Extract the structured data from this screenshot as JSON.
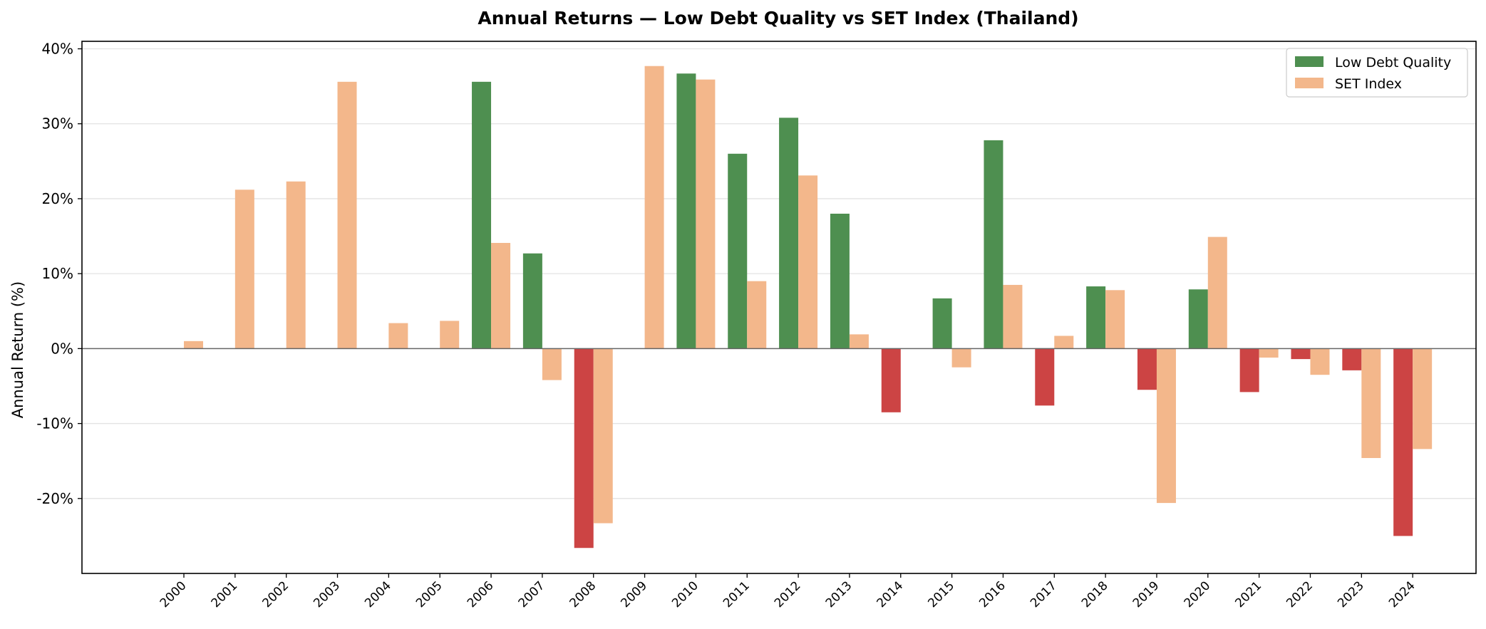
{
  "chart_data": {
    "type": "bar",
    "title": "Annual Returns — Low Debt Quality vs SET Index (Thailand)",
    "xlabel": "",
    "ylabel": "Annual Return (%)",
    "ylim": [
      -30,
      41
    ],
    "yticks": [
      -20,
      -10,
      0,
      10,
      20,
      30,
      40
    ],
    "ytick_labels": [
      "-20%",
      "-10%",
      "0%",
      "10%",
      "20%",
      "30%",
      "40%"
    ],
    "grid": "horizontal",
    "legend_position": "top-right",
    "categories": [
      "2000",
      "2001",
      "2002",
      "2003",
      "2004",
      "2005",
      "2006",
      "2007",
      "2008",
      "2009",
      "2010",
      "2011",
      "2012",
      "2013",
      "2014",
      "2015",
      "2016",
      "2017",
      "2018",
      "2019",
      "2020",
      "2021",
      "2022",
      "2023",
      "2024"
    ],
    "series": [
      {
        "name": "Low Debt Quality",
        "color": "#4e8f50",
        "negative_color": "#cc4444",
        "values": [
          null,
          null,
          null,
          null,
          null,
          null,
          35.6,
          12.7,
          -26.6,
          null,
          36.7,
          26.0,
          30.8,
          18.0,
          -8.5,
          6.7,
          27.8,
          -7.6,
          8.3,
          -5.5,
          7.9,
          -5.8,
          -1.4,
          -2.9,
          -25.0
        ]
      },
      {
        "name": "SET Index",
        "color": "#f3b78b",
        "values": [
          1.0,
          21.2,
          22.3,
          35.6,
          3.4,
          3.7,
          14.1,
          -4.2,
          -23.3,
          37.7,
          35.9,
          9.0,
          23.1,
          1.9,
          null,
          -2.5,
          8.5,
          1.7,
          7.8,
          -20.6,
          14.9,
          -1.2,
          -3.5,
          -14.6,
          -13.4
        ]
      }
    ]
  }
}
